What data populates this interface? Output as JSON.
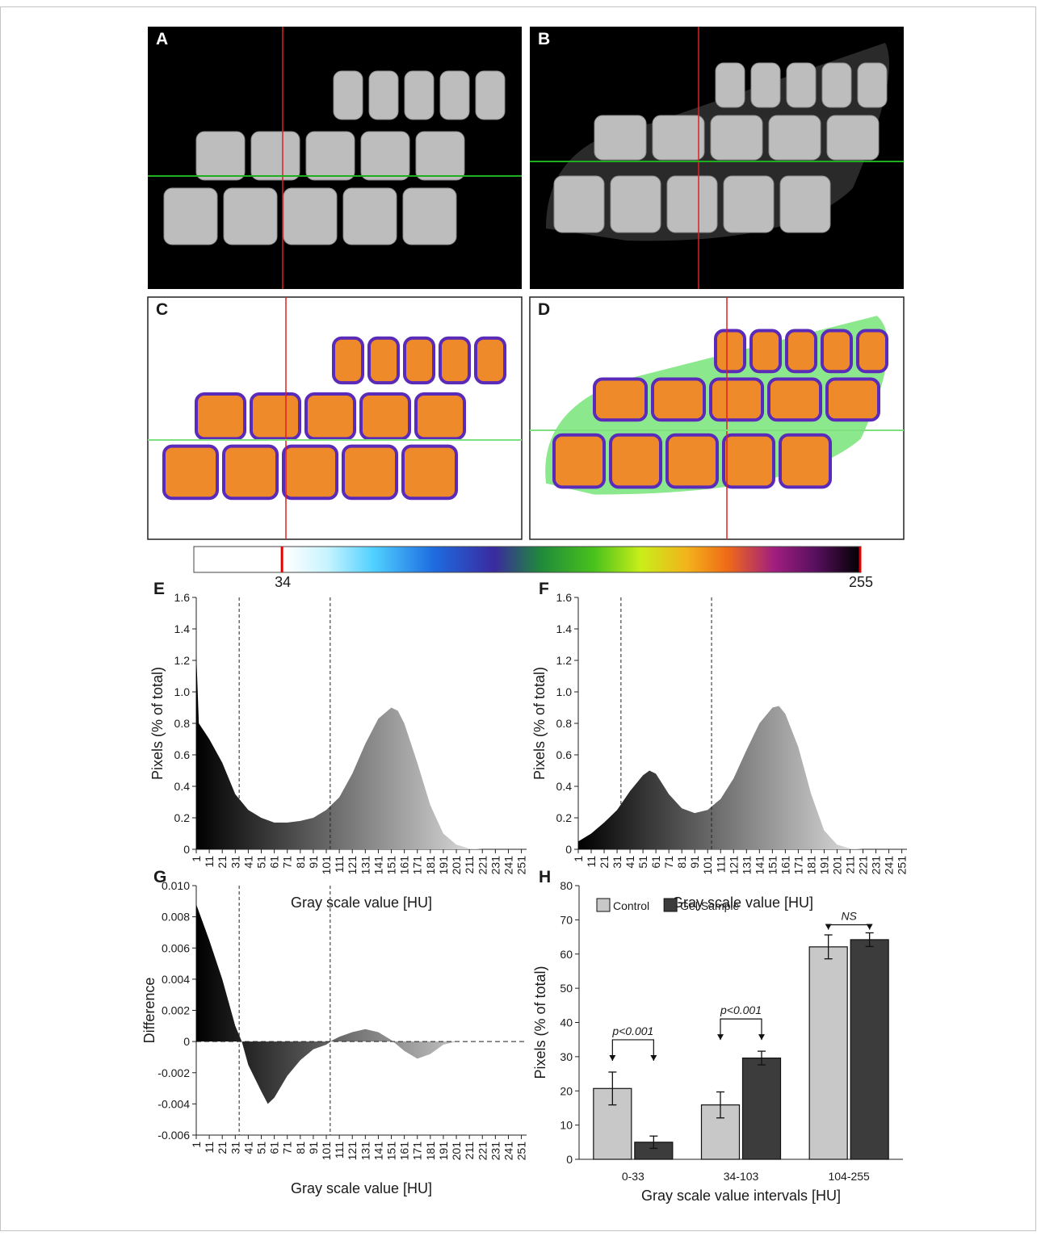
{
  "panels": [
    {
      "label": "A"
    },
    {
      "label": "B"
    },
    {
      "label": "C"
    },
    {
      "label": "D"
    }
  ],
  "colorbar": {
    "lim": [
      0,
      255
    ],
    "ticks": [
      34,
      255
    ]
  },
  "chart_data": [
    {
      "type": "area",
      "label": "E",
      "ylabel": "Pixels (% of total)",
      "xlabel": "Gray scale value [HU]",
      "x": [
        1,
        3,
        11,
        21,
        31,
        41,
        51,
        61,
        71,
        81,
        91,
        101,
        111,
        121,
        131,
        141,
        151,
        156,
        161,
        171,
        181,
        191,
        201,
        211,
        221,
        231,
        241,
        251,
        255
      ],
      "values": [
        1.25,
        0.8,
        0.7,
        0.55,
        0.35,
        0.25,
        0.2,
        0.17,
        0.17,
        0.18,
        0.2,
        0.25,
        0.33,
        0.48,
        0.67,
        0.83,
        0.9,
        0.88,
        0.8,
        0.55,
        0.28,
        0.1,
        0.03,
        0.005,
        0,
        0,
        0,
        0,
        0
      ],
      "gradient": [
        "#000000",
        "#dcdcdc"
      ],
      "xlim": [
        1,
        255
      ],
      "ylim": [
        0,
        1.6
      ],
      "xticks": [
        1,
        11,
        21,
        31,
        41,
        51,
        61,
        71,
        81,
        91,
        101,
        111,
        121,
        131,
        141,
        151,
        161,
        171,
        181,
        191,
        201,
        211,
        221,
        231,
        241,
        251
      ],
      "yticks": [
        0,
        0.2,
        0.4,
        0.6,
        0.8,
        {
          "value": 1,
          "label": "1.0"
        },
        1.2,
        1.4,
        1.6
      ],
      "vlines": [
        34,
        104
      ],
      "zero_line": false
    },
    {
      "type": "area",
      "label": "F",
      "ylabel": "Pixels (% of total)",
      "xlabel": "Gray scale value [HU]",
      "x": [
        1,
        11,
        21,
        31,
        41,
        51,
        56,
        61,
        71,
        81,
        91,
        101,
        111,
        121,
        131,
        141,
        151,
        156,
        161,
        171,
        181,
        191,
        201,
        211,
        221,
        231,
        241,
        251,
        255
      ],
      "values": [
        0.05,
        0.1,
        0.17,
        0.25,
        0.37,
        0.47,
        0.5,
        0.48,
        0.35,
        0.26,
        0.23,
        0.25,
        0.32,
        0.45,
        0.63,
        0.8,
        0.9,
        0.91,
        0.86,
        0.65,
        0.35,
        0.12,
        0.03,
        0.005,
        0,
        0,
        0,
        0,
        0
      ],
      "gradient": [
        "#000000",
        "#dcdcdc"
      ],
      "xlim": [
        1,
        255
      ],
      "ylim": [
        0,
        1.6
      ],
      "xticks": [
        1,
        11,
        21,
        31,
        41,
        51,
        61,
        71,
        81,
        91,
        101,
        111,
        121,
        131,
        141,
        151,
        161,
        171,
        181,
        191,
        201,
        211,
        221,
        231,
        241,
        251
      ],
      "yticks": [
        0,
        0.2,
        0.4,
        0.6,
        0.8,
        {
          "value": 1,
          "label": "1.0"
        },
        1.2,
        1.4,
        1.6
      ],
      "vlines": [
        34,
        104
      ],
      "zero_line": false
    },
    {
      "type": "area",
      "label": "G",
      "ylabel": "Difference",
      "xlabel": "Gray scale value [HU]",
      "x": [
        1,
        11,
        21,
        31,
        36,
        41,
        51,
        56,
        61,
        71,
        81,
        91,
        101,
        106,
        111,
        121,
        131,
        141,
        151,
        161,
        171,
        181,
        191,
        201,
        211,
        221,
        231,
        241,
        251,
        255
      ],
      "values": [
        0.0088,
        0.0065,
        0.004,
        0.001,
        0,
        -0.0015,
        -0.0032,
        -0.004,
        -0.0036,
        -0.0022,
        -0.0012,
        -0.0005,
        -0.0002,
        0.0001,
        0.0003,
        0.0006,
        0.0008,
        0.0006,
        0.0001,
        -0.0006,
        -0.0011,
        -0.0008,
        -0.0002,
        0,
        0,
        0,
        0,
        0,
        0,
        0
      ],
      "gradient": [
        "#000000",
        "#cfcfcf"
      ],
      "xlim": [
        1,
        255
      ],
      "ylim": [
        -0.006,
        0.01
      ],
      "xticks": [
        1,
        11,
        21,
        31,
        41,
        51,
        61,
        71,
        81,
        91,
        101,
        111,
        121,
        131,
        141,
        151,
        161,
        171,
        181,
        191,
        201,
        211,
        221,
        231,
        241,
        251
      ],
      "yticks": [
        -0.006,
        -0.004,
        -0.002,
        0,
        0.002,
        0.004,
        0.006,
        0.008,
        {
          "value": 0.01,
          "label": "0.010"
        }
      ],
      "vlines": [
        34,
        104
      ],
      "zero_line": true
    },
    {
      "type": "bar",
      "label": "H",
      "ylabel": "Pixels (% of total)",
      "xlabel": "Gray scale value intervals  [HU]",
      "categories": [
        "0-33",
        "34-103",
        "104-255"
      ],
      "series": [
        {
          "name": "Control",
          "color": "#c8c8c8",
          "values": [
            20.7,
            15.9,
            62.1
          ],
          "errors": [
            4.8,
            3.8,
            3.5
          ]
        },
        {
          "name": "Gel Sample",
          "color": "#3c3c3c",
          "values": [
            5,
            29.6,
            64.2
          ],
          "errors": [
            1.8,
            2,
            2
          ]
        }
      ],
      "significance": [
        "p<0.001",
        "p<0.001",
        "NS"
      ],
      "ylim": [
        0,
        80
      ],
      "yticks": [
        0,
        10,
        20,
        30,
        40,
        50,
        60,
        70,
        80
      ],
      "legend": "upper left"
    }
  ]
}
